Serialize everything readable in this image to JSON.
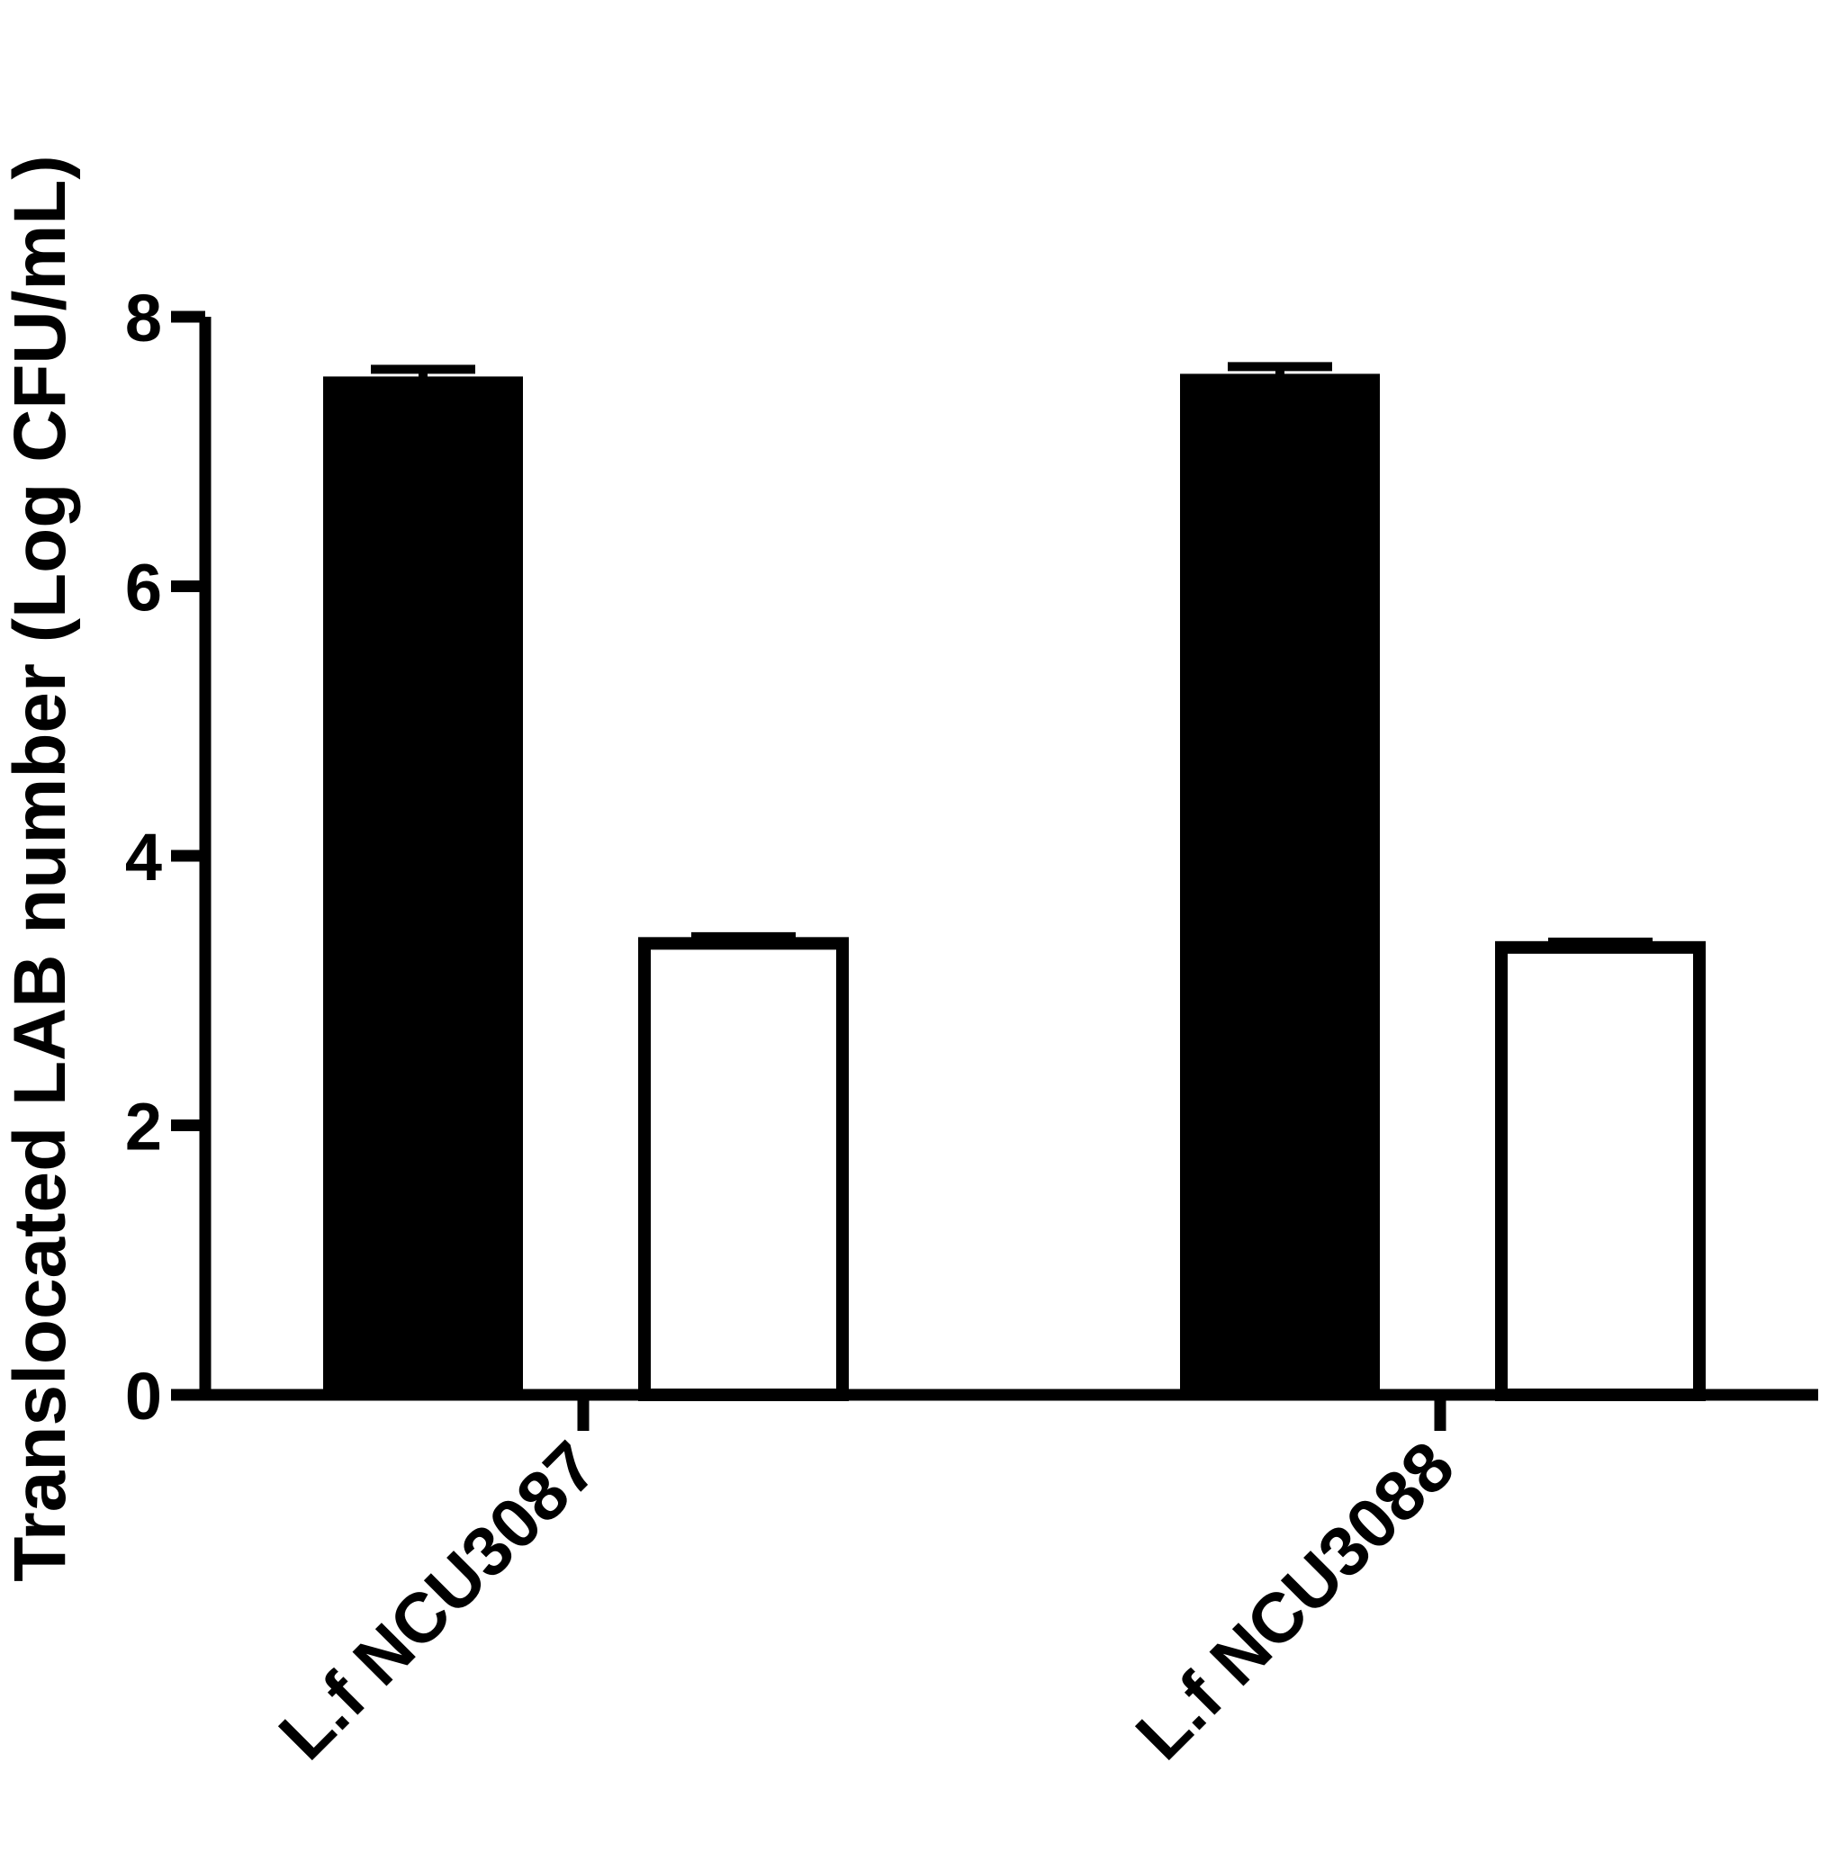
{
  "chart_data": {
    "type": "bar",
    "title": "",
    "xlabel": "",
    "ylabel": "Translocated LAB number (Log CFU/mL)",
    "ylim": [
      0,
      8
    ],
    "yticks": [
      "0",
      "2",
      "4",
      "6",
      "8"
    ],
    "categories": [
      "L.f NCU3087",
      "L.f NCU3088"
    ],
    "series": [
      {
        "fill": "#000000",
        "values": [
          7.55,
          7.57
        ],
        "errors": [
          0.06,
          0.06
        ]
      },
      {
        "fill": "#ffffff",
        "values": [
          3.35,
          3.32
        ],
        "errors": [
          0.05,
          0.04
        ]
      }
    ],
    "grid": false,
    "legend": "none"
  }
}
